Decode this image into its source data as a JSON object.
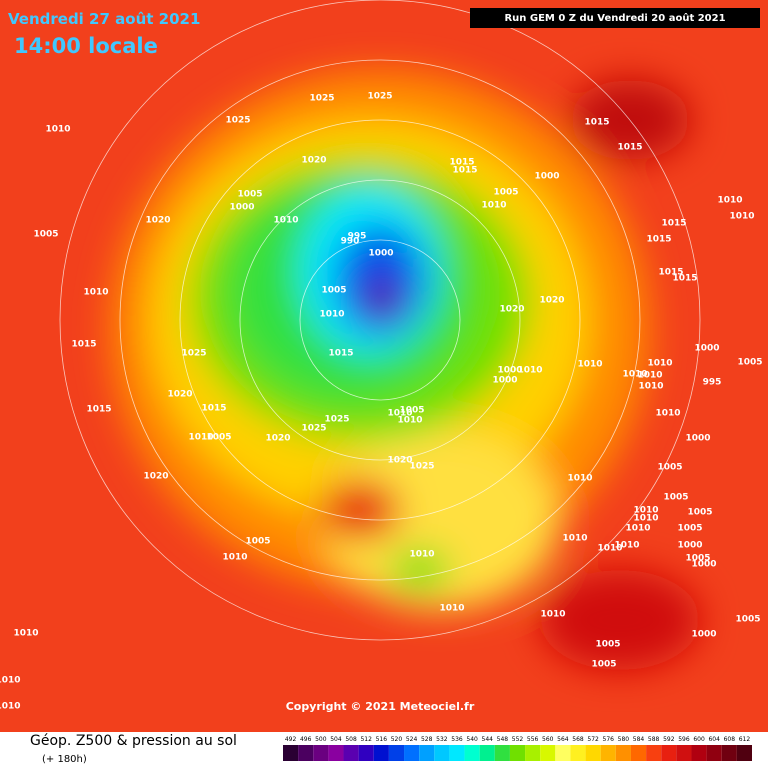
{
  "header": {
    "date": "Vendredi 27 août 2021",
    "time": "14:00 locale",
    "run": "Run GEM 0 Z du Vendredi 20 août 2021"
  },
  "copyright": "Copyright © 2021 Meteociel.fr",
  "footer": {
    "title": "Géop. Z500 & pression au sol",
    "subtitle": "(+ 180h)"
  },
  "scale": {
    "labels": [
      492,
      496,
      500,
      504,
      508,
      512,
      516,
      520,
      524,
      528,
      532,
      536,
      540,
      544,
      548,
      552,
      556,
      560,
      564,
      568,
      572,
      576,
      580,
      584,
      588,
      592,
      596,
      600,
      604,
      608,
      612
    ],
    "colors": [
      "#2a0033",
      "#4b0060",
      "#6a0080",
      "#8a00a0",
      "#5a00b0",
      "#3000c0",
      "#0010d0",
      "#0040e8",
      "#0070ff",
      "#00a0ff",
      "#00c8ff",
      "#00e8ff",
      "#00ffd0",
      "#00f090",
      "#30e040",
      "#70e000",
      "#a8f000",
      "#d8f800",
      "#ffff60",
      "#fff020",
      "#ffd800",
      "#ffb400",
      "#ff9000",
      "#ff6800",
      "#f84010",
      "#e82010",
      "#d01010",
      "#b00010",
      "#900010",
      "#700010",
      "#500010"
    ]
  },
  "isobar_labels": [
    1025,
    1025,
    1025,
    1010,
    1015,
    1015,
    1020,
    1015,
    1015,
    1000,
    1005,
    1005,
    1000,
    1010,
    1010,
    1010,
    1020,
    1010,
    1015,
    995,
    990,
    1005,
    1000,
    1015,
    1015,
    1015,
    1010,
    1005,
    1020,
    1020,
    1010,
    1015,
    1025,
    1015,
    1010,
    1010,
    1000,
    1005,
    1010,
    1010,
    1010,
    995,
    1000,
    1010,
    1000,
    1020,
    1015,
    1015,
    1010,
    1025,
    1025,
    1010,
    1005,
    1010,
    1010,
    1005,
    1020,
    1000,
    1020,
    1025,
    1005,
    1020,
    1010,
    1005,
    1010,
    1010,
    1010,
    1005,
    1005,
    1005,
    1010,
    1010,
    1010,
    1000,
    1005,
    1010,
    1010,
    1000,
    1010,
    1010,
    1010,
    1000,
    1005,
    1005,
    1005,
    1010,
    1010
  ]
}
